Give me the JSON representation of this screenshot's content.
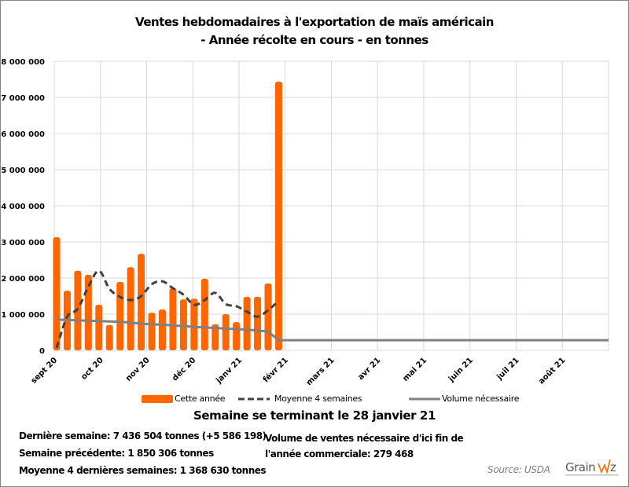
{
  "title_line1": "Ventes hebdomadaires à l'exportation de maïs américain",
  "title_line2": "- Année récolte en cours - en tonnes",
  "chart_data": {
    "type": "bar",
    "title": "Ventes hebdomadaires à l'exportation de maïs américain - Année récolte en cours - en tonnes",
    "ylim": [
      0,
      8000000
    ],
    "yticks": [
      "0",
      "1 000 000",
      "2 000 000",
      "3 000 000",
      "4 000 000",
      "5 000 000",
      "6 000 000",
      "7 000 000",
      "8 000 000"
    ],
    "xticks": [
      "sept 20",
      "oct 20",
      "nov 20",
      "déc 20",
      "janv 21",
      "févr 21",
      "mars 21",
      "avr 21",
      "mai 21",
      "juin 21",
      "juil 21",
      "août 21"
    ],
    "grid": true,
    "legend_position": "bottom",
    "series": [
      {
        "name": "Cette année",
        "type": "bar",
        "color": "#ff6600",
        "values": [
          3130000,
          1650000,
          2200000,
          2090000,
          1260000,
          700000,
          1890000,
          2300000,
          2670000,
          1040000,
          1130000,
          1720000,
          1410000,
          1430000,
          1980000,
          720000,
          1000000,
          780000,
          1480000,
          1480000,
          1850306,
          7436504
        ]
      },
      {
        "name": "Moyenne 4 semaines",
        "type": "line-dashed",
        "color": "#404040",
        "values": [
          70000,
          930000,
          1150000,
          1760000,
          2200000,
          1700000,
          1480000,
          1390000,
          1500000,
          1830000,
          1910000,
          1720000,
          1540000,
          1260000,
          1390000,
          1590000,
          1280000,
          1220000,
          1070000,
          930000,
          1110000,
          1368630
        ]
      },
      {
        "name": "Volume nécessaire",
        "type": "line",
        "color": "#808080",
        "values": [
          850000,
          840000,
          830000,
          820000,
          810000,
          800000,
          790000,
          770000,
          740000,
          720000,
          710000,
          690000,
          670000,
          650000,
          630000,
          620000,
          600000,
          590000,
          570000,
          550000,
          520000,
          279468
        ],
        "extends_flat_to_end": 279468
      }
    ]
  },
  "legend": {
    "bar_label": "Cette année",
    "avg_label": "Moyenne 4 semaines",
    "volume_label": "Volume nécessaire"
  },
  "subtitle": "Semaine se terminant le 28 janvier 21",
  "stats": {
    "last_week": "Dernière semaine: 7 436 504 tonnes (+5 586 198)",
    "previous_week": "Semaine précédente: 1 850 306 tonnes",
    "avg_4_weeks": "Moyenne 4 dernières semaines: 1 368 630 tonnes",
    "volume_needed_line1": "Volume de ventes nécessaire d'ici fin de",
    "volume_needed_line2": "l'année commerciale: 279 468"
  },
  "source": "Source: USDA",
  "logo_text": "GrainWiz",
  "colors": {
    "bar": "#ff6600",
    "avg": "#404040",
    "volume": "#808080",
    "grid": "#d9d9d9"
  }
}
